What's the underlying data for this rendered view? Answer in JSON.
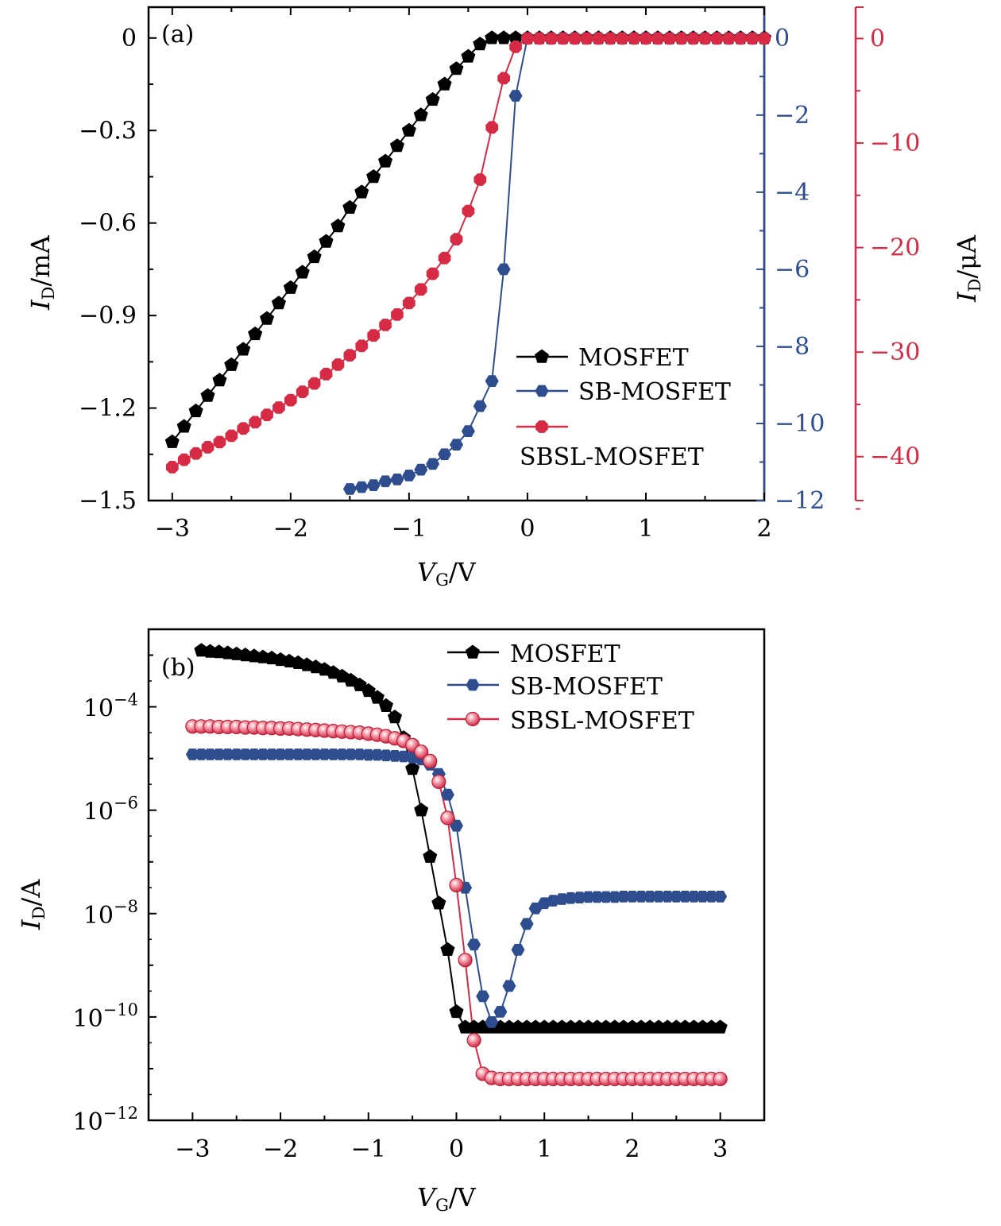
{
  "colors": {
    "mosfet": "#000000",
    "sb_mosfet": "#2e4d8f",
    "sbsl_mosfet": "#d72a45",
    "sbsl_marker_b": "#e8465f",
    "axis": "#000000"
  },
  "chart_data": [
    {
      "id": "a",
      "type": "line",
      "panel_tag": "(a)",
      "xlabel": {
        "main": "V",
        "sub": "G",
        "unit": "/V"
      },
      "ylabel_left": {
        "main": "I",
        "sub": "D",
        "unit": "/mA"
      },
      "ylabel_right": {
        "main": "I",
        "sub": "D",
        "unit": "/μA"
      },
      "xlim": [
        -3.2,
        2.0
      ],
      "xticks": [
        -3,
        -2,
        -1,
        0,
        1,
        2
      ],
      "xtick_labels": [
        "−3",
        "−2",
        "−1",
        "0",
        "1",
        "2"
      ],
      "ylim_left": [
        -1.5,
        0.1
      ],
      "yticks_left": [
        0,
        -0.3,
        -0.6,
        -0.9,
        -1.2,
        -1.5
      ],
      "ytick_labels_left": [
        "0",
        "−0.3",
        "−0.6",
        "−0.9",
        "−1.2",
        "−1.5"
      ],
      "ylim_blue": [
        -12,
        0.8
      ],
      "yticks_blue": [
        0,
        -2,
        -4,
        -6,
        -8,
        -10,
        -12
      ],
      "ytick_labels_blue": [
        "0",
        "−2",
        "−4",
        "−6",
        "−8",
        "−10",
        "−12"
      ],
      "ylim_red": [
        -44.2,
        3.0
      ],
      "yticks_red": [
        0,
        -10,
        -20,
        -30,
        -40
      ],
      "ytick_labels_red": [
        "0",
        "−10",
        "−20",
        "−30",
        "−40"
      ],
      "legend": [
        "MOSFET",
        "SB-MOSFET",
        "SBSL-MOSFET"
      ],
      "legend_position": "center-right",
      "series": [
        {
          "name": "MOSFET",
          "axis": "left",
          "marker": "pentagon",
          "x": [
            -3.0,
            -2.9,
            -2.8,
            -2.7,
            -2.6,
            -2.5,
            -2.4,
            -2.3,
            -2.2,
            -2.1,
            -2.0,
            -1.9,
            -1.8,
            -1.7,
            -1.6,
            -1.5,
            -1.4,
            -1.3,
            -1.2,
            -1.1,
            -1.0,
            -0.9,
            -0.8,
            -0.7,
            -0.6,
            -0.5,
            -0.4,
            -0.3,
            -0.2,
            -0.1,
            0.0,
            0.1,
            0.2,
            0.3,
            0.4,
            0.5,
            0.6,
            0.7,
            0.8,
            0.9,
            1.0,
            1.1,
            1.2,
            1.3,
            1.4,
            1.5,
            1.6,
            1.7,
            1.8,
            1.9,
            2.0
          ],
          "y": [
            -1.31,
            -1.26,
            -1.21,
            -1.16,
            -1.11,
            -1.06,
            -1.01,
            -0.96,
            -0.91,
            -0.86,
            -0.81,
            -0.76,
            -0.71,
            -0.66,
            -0.61,
            -0.55,
            -0.5,
            -0.45,
            -0.4,
            -0.35,
            -0.3,
            -0.25,
            -0.2,
            -0.15,
            -0.1,
            -0.06,
            -0.02,
            0.0,
            0.0,
            0.0,
            0.0,
            0.0,
            0.0,
            0.0,
            0.0,
            0.0,
            0.0,
            0.0,
            0.0,
            0.0,
            0.0,
            0.0,
            0.0,
            0.0,
            0.0,
            0.0,
            0.0,
            0.0,
            0.0,
            0.0,
            0.0
          ]
        },
        {
          "name": "SB-MOSFET",
          "axis": "right-inner",
          "marker": "hexagon",
          "x": [
            -1.5,
            -1.4,
            -1.3,
            -1.2,
            -1.1,
            -1.0,
            -0.9,
            -0.8,
            -0.7,
            -0.6,
            -0.5,
            -0.4,
            -0.3,
            -0.2,
            -0.1,
            0.0,
            0.1,
            0.2,
            0.3,
            0.4,
            0.5,
            0.6,
            0.7,
            0.8,
            0.9,
            1.0,
            1.1,
            1.2,
            1.3,
            1.4,
            1.5,
            1.6,
            1.7,
            1.8,
            1.9,
            2.0
          ],
          "y": [
            -11.7,
            -11.65,
            -11.6,
            -11.5,
            -11.45,
            -11.35,
            -11.2,
            -11.05,
            -10.8,
            -10.55,
            -10.2,
            -9.55,
            -8.9,
            -6.0,
            -1.5,
            0.0,
            0.0,
            0.0,
            0.0,
            0.0,
            0.0,
            0.0,
            0.0,
            0.0,
            0.0,
            0.0,
            0.0,
            0.0,
            0.0,
            0.0,
            0.0,
            0.0,
            0.0,
            0.0,
            0.0,
            0.0
          ]
        },
        {
          "name": "SBSL-MOSFET",
          "axis": "right-outer",
          "marker": "octagon",
          "x": [
            -3.0,
            -2.9,
            -2.8,
            -2.7,
            -2.6,
            -2.5,
            -2.4,
            -2.3,
            -2.2,
            -2.1,
            -2.0,
            -1.9,
            -1.8,
            -1.7,
            -1.6,
            -1.5,
            -1.4,
            -1.3,
            -1.2,
            -1.1,
            -1.0,
            -0.9,
            -0.8,
            -0.7,
            -0.6,
            -0.5,
            -0.4,
            -0.3,
            -0.2,
            -0.1,
            0.0,
            0.1,
            0.2,
            0.3,
            0.4,
            0.5,
            0.6,
            0.7,
            0.8,
            0.9,
            1.0,
            1.1,
            1.2,
            1.3,
            1.4,
            1.5,
            1.6,
            1.7,
            1.8,
            1.9,
            2.0
          ],
          "y": [
            -41.0,
            -40.3,
            -39.7,
            -39.1,
            -38.6,
            -38.0,
            -37.3,
            -36.7,
            -36.0,
            -35.3,
            -34.6,
            -33.8,
            -33.0,
            -32.1,
            -31.2,
            -30.3,
            -29.4,
            -28.4,
            -27.4,
            -26.4,
            -25.3,
            -24.0,
            -22.5,
            -21.0,
            -19.2,
            -16.5,
            -13.5,
            -8.5,
            -3.8,
            -0.8,
            0.0,
            0.0,
            0.0,
            0.0,
            0.0,
            0.0,
            0.0,
            0.0,
            0.0,
            0.0,
            0.0,
            0.0,
            0.0,
            0.0,
            0.0,
            0.0,
            0.0,
            0.0,
            0.0,
            0.0,
            0.0
          ]
        }
      ]
    },
    {
      "id": "b",
      "type": "line",
      "panel_tag": "(b)",
      "yscale": "log",
      "xlabel": {
        "main": "V",
        "sub": "G",
        "unit": "/V"
      },
      "ylabel": {
        "main": "I",
        "sub": "D",
        "unit": "/A"
      },
      "xlim": [
        -3.5,
        3.5
      ],
      "xticks": [
        -3,
        -2,
        -1,
        0,
        1,
        2,
        3
      ],
      "xtick_labels": [
        "−3",
        "−2",
        "−1",
        "0",
        "1",
        "2",
        "3"
      ],
      "ylim_exp": [
        -12,
        -2.5
      ],
      "yticks_exp": [
        -4,
        -6,
        -8,
        -10,
        -12
      ],
      "ytick_labels": [
        {
          "base": "10",
          "exp": "−4"
        },
        {
          "base": "10",
          "exp": "−6"
        },
        {
          "base": "10",
          "exp": "−8"
        },
        {
          "base": "10",
          "exp": "−10"
        },
        {
          "base": "10",
          "exp": "−12"
        }
      ],
      "legend": [
        "MOSFET",
        "SB-MOSFET",
        "SBSL-MOSFET"
      ],
      "legend_position": "top-right",
      "series": [
        {
          "name": "MOSFET",
          "marker": "pentagon",
          "x": [
            -2.9,
            -2.8,
            -2.7,
            -2.6,
            -2.5,
            -2.4,
            -2.3,
            -2.2,
            -2.1,
            -2.0,
            -1.9,
            -1.8,
            -1.7,
            -1.6,
            -1.5,
            -1.4,
            -1.3,
            -1.2,
            -1.1,
            -1.0,
            -0.9,
            -0.8,
            -0.7,
            -0.6,
            -0.5,
            -0.4,
            -0.3,
            -0.2,
            -0.1,
            0.0,
            0.1,
            0.2,
            0.3,
            0.4,
            0.5,
            0.6,
            0.7,
            0.8,
            0.9,
            1.0,
            1.1,
            1.2,
            1.3,
            1.4,
            1.5,
            1.6,
            1.7,
            1.8,
            1.9,
            2.0,
            2.1,
            2.2,
            2.3,
            2.4,
            2.5,
            2.6,
            2.7,
            2.8,
            2.9,
            3.0
          ],
          "y_log10": [
            -2.91,
            -2.93,
            -2.94,
            -2.96,
            -2.98,
            -3.0,
            -3.02,
            -3.04,
            -3.06,
            -3.09,
            -3.12,
            -3.15,
            -3.19,
            -3.23,
            -3.28,
            -3.34,
            -3.41,
            -3.49,
            -3.58,
            -3.69,
            -3.82,
            -3.98,
            -4.2,
            -4.6,
            -5.2,
            -6.0,
            -6.9,
            -7.8,
            -8.7,
            -9.9,
            -10.2,
            -10.2,
            -10.2,
            -10.2,
            -10.2,
            -10.2,
            -10.2,
            -10.2,
            -10.2,
            -10.2,
            -10.2,
            -10.2,
            -10.2,
            -10.2,
            -10.2,
            -10.2,
            -10.2,
            -10.2,
            -10.2,
            -10.2,
            -10.2,
            -10.2,
            -10.2,
            -10.2,
            -10.2,
            -10.2,
            -10.2,
            -10.2,
            -10.2,
            -10.2
          ]
        },
        {
          "name": "SB-MOSFET",
          "marker": "hexagon",
          "x": [
            -3.0,
            -2.9,
            -2.8,
            -2.7,
            -2.6,
            -2.5,
            -2.4,
            -2.3,
            -2.2,
            -2.1,
            -2.0,
            -1.9,
            -1.8,
            -1.7,
            -1.6,
            -1.5,
            -1.4,
            -1.3,
            -1.2,
            -1.1,
            -1.0,
            -0.9,
            -0.8,
            -0.7,
            -0.6,
            -0.5,
            -0.4,
            -0.3,
            -0.2,
            -0.1,
            0.0,
            0.1,
            0.2,
            0.3,
            0.4,
            0.5,
            0.6,
            0.7,
            0.8,
            0.9,
            1.0,
            1.1,
            1.2,
            1.3,
            1.4,
            1.5,
            1.6,
            1.7,
            1.8,
            1.9,
            2.0,
            2.1,
            2.2,
            2.3,
            2.4,
            2.5,
            2.6,
            2.7,
            2.8,
            2.9,
            3.0
          ],
          "y_log10": [
            -4.92,
            -4.92,
            -4.92,
            -4.92,
            -4.92,
            -4.92,
            -4.92,
            -4.92,
            -4.92,
            -4.92,
            -4.92,
            -4.92,
            -4.92,
            -4.92,
            -4.92,
            -4.92,
            -4.92,
            -4.92,
            -4.92,
            -4.92,
            -4.93,
            -4.93,
            -4.94,
            -4.95,
            -4.96,
            -4.98,
            -5.02,
            -5.12,
            -5.3,
            -5.7,
            -6.3,
            -7.5,
            -8.6,
            -9.6,
            -10.1,
            -9.9,
            -9.4,
            -8.7,
            -8.2,
            -7.9,
            -7.8,
            -7.75,
            -7.72,
            -7.7,
            -7.69,
            -7.68,
            -7.68,
            -7.68,
            -7.68,
            -7.67,
            -7.67,
            -7.67,
            -7.67,
            -7.67,
            -7.67,
            -7.67,
            -7.67,
            -7.67,
            -7.67,
            -7.67,
            -7.67
          ]
        },
        {
          "name": "SBSL-MOSFET",
          "marker": "sphere",
          "x": [
            -3.0,
            -2.9,
            -2.8,
            -2.7,
            -2.6,
            -2.5,
            -2.4,
            -2.3,
            -2.2,
            -2.1,
            -2.0,
            -1.9,
            -1.8,
            -1.7,
            -1.6,
            -1.5,
            -1.4,
            -1.3,
            -1.2,
            -1.1,
            -1.0,
            -0.9,
            -0.8,
            -0.7,
            -0.6,
            -0.5,
            -0.4,
            -0.3,
            -0.2,
            -0.1,
            0.0,
            0.1,
            0.2,
            0.3,
            0.4,
            0.5,
            0.6,
            0.7,
            0.8,
            0.9,
            1.0,
            1.1,
            1.2,
            1.3,
            1.4,
            1.5,
            1.6,
            1.7,
            1.8,
            1.9,
            2.0,
            2.1,
            2.2,
            2.3,
            2.4,
            2.5,
            2.6,
            2.7,
            2.8,
            2.9,
            3.0
          ],
          "y_log10": [
            -4.38,
            -4.38,
            -4.38,
            -4.39,
            -4.39,
            -4.39,
            -4.4,
            -4.4,
            -4.41,
            -4.41,
            -4.42,
            -4.42,
            -4.43,
            -4.44,
            -4.45,
            -4.46,
            -4.47,
            -4.48,
            -4.49,
            -4.5,
            -4.52,
            -4.54,
            -4.57,
            -4.61,
            -4.66,
            -4.74,
            -4.87,
            -5.05,
            -5.45,
            -6.15,
            -7.45,
            -8.9,
            -10.45,
            -11.1,
            -11.18,
            -11.2,
            -11.2,
            -11.2,
            -11.2,
            -11.2,
            -11.2,
            -11.2,
            -11.2,
            -11.2,
            -11.2,
            -11.2,
            -11.2,
            -11.2,
            -11.2,
            -11.2,
            -11.2,
            -11.2,
            -11.2,
            -11.2,
            -11.2,
            -11.2,
            -11.2,
            -11.2,
            -11.2,
            -11.2,
            -11.2
          ]
        }
      ]
    }
  ]
}
